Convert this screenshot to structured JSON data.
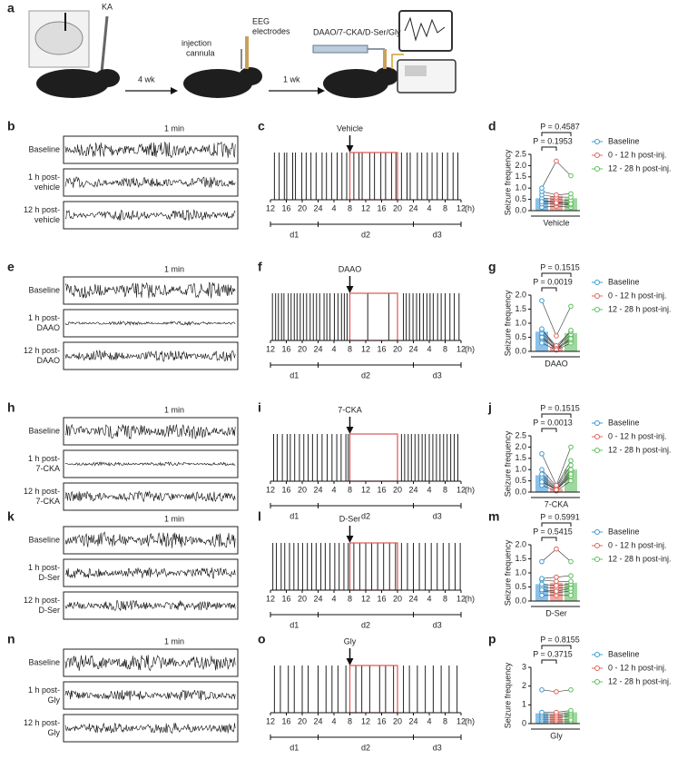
{
  "schematic": {
    "label": "a",
    "ka": "KA",
    "step1": "4 wk",
    "cannula": [
      "injection",
      "cannula"
    ],
    "electrodes": [
      "EEG",
      "electrodes"
    ],
    "step2": "1 wk",
    "drugs": "DAAO/7-CKA/D-Ser/Gly"
  },
  "eeg_panels": [
    {
      "label": "b",
      "scale": "1 min",
      "traces": [
        [
          "Baseline"
        ],
        [
          "1 h post-",
          "vehicle"
        ],
        [
          "12 h post-",
          "vehicle"
        ]
      ]
    },
    {
      "label": "e",
      "scale": "1 min",
      "traces": [
        [
          "Baseline"
        ],
        [
          "1 h post-",
          "DAAO"
        ],
        [
          "12 h post-",
          "DAAO"
        ]
      ]
    },
    {
      "label": "h",
      "scale": "1 min",
      "traces": [
        [
          "Baseline"
        ],
        [
          "1 h post-",
          "7-CKA"
        ],
        [
          "12 h post-",
          "7-CKA"
        ]
      ]
    },
    {
      "label": "k",
      "scale": "1 min",
      "traces": [
        [
          "Baseline"
        ],
        [
          "1 h post-",
          "D-Ser"
        ],
        [
          "12 h post-",
          "D-Ser"
        ]
      ]
    },
    {
      "label": "n",
      "scale": "1 min",
      "traces": [
        [
          "Baseline"
        ],
        [
          "1 h post-",
          "Gly"
        ],
        [
          "12 h post-",
          "Gly"
        ]
      ]
    }
  ],
  "chart_data": [
    {
      "type": "raster",
      "label": "c",
      "annotation": "Vehicle",
      "xunit": "(h)",
      "color": "#222",
      "highlight_color": "#e05555",
      "highlight": [
        20,
        32
      ],
      "arrow": 20,
      "x": [
        1,
        2.2,
        3.5,
        4.1,
        5.6,
        6.3,
        7.9,
        9,
        10.2,
        11.5,
        13,
        14.1,
        15.4,
        16.8,
        18,
        19.2,
        21,
        22.3,
        23.1,
        25,
        26.2,
        27.8,
        29,
        30.5,
        31.6,
        33,
        34.4,
        35.2,
        37,
        38.1,
        39.5,
        40.7,
        42,
        43.3,
        44.6,
        46,
        47.2
      ],
      "xlim": [
        0,
        48
      ],
      "xticks": [
        {
          "value": 0,
          "label": "12"
        },
        {
          "value": 4,
          "label": "16"
        },
        {
          "value": 8,
          "label": "20"
        },
        {
          "value": 12,
          "label": "24"
        },
        {
          "value": 16,
          "label": "4"
        },
        {
          "value": 20,
          "label": "8"
        },
        {
          "value": 24,
          "label": "12"
        },
        {
          "value": 28,
          "label": "16"
        },
        {
          "value": 32,
          "label": "20"
        },
        {
          "value": 36,
          "label": "24"
        },
        {
          "value": 40,
          "label": "4"
        },
        {
          "value": 44,
          "label": "8"
        },
        {
          "value": 48,
          "label": "12"
        }
      ],
      "days": [
        {
          "label": "d1",
          "range": [
            0,
            12
          ]
        },
        {
          "label": "d2",
          "range": [
            12,
            36
          ]
        },
        {
          "label": "d3",
          "range": [
            36,
            48
          ]
        }
      ]
    },
    {
      "type": "bar",
      "label": "d",
      "xlabel": "Vehicle",
      "ylabel": "Seizure frequency",
      "categories": [
        "Baseline",
        "0 - 12 h post-inj.",
        "12 - 28 h post-inj."
      ],
      "colors": [
        "#8cc2ea",
        "#f2aaa4",
        "#9fd89f"
      ],
      "point_colors": [
        "#3a9ad0",
        "#e0645c",
        "#5cbf5c"
      ],
      "values": [
        0.55,
        0.65,
        0.55
      ],
      "points": [
        [
          0.15,
          0.3,
          0.45,
          0.55,
          0.7,
          0.85,
          1.0,
          0.4
        ],
        [
          0.2,
          0.3,
          0.4,
          0.5,
          0.6,
          0.7,
          2.2,
          0.35
        ],
        [
          0.15,
          0.25,
          0.35,
          0.45,
          0.6,
          0.75,
          1.55,
          0.3
        ]
      ],
      "ylim": [
        0,
        2.5
      ],
      "yticks": [
        {
          "value": 0,
          "label": "0.0"
        },
        0.5,
        {
          "value": 1,
          "label": "1.0"
        },
        1.5,
        {
          "value": 2,
          "label": "2.0"
        },
        2.5
      ],
      "comparisons": [
        {
          "label": "P = 0.1953",
          "from": 0,
          "to": 1
        },
        {
          "label": "P = 0.4587",
          "from": 0,
          "to": 2
        }
      ]
    },
    {
      "type": "raster",
      "label": "f",
      "annotation": "DAAO",
      "xunit": "(h)",
      "color": "#222",
      "highlight_color": "#e05555",
      "highlight": [
        20,
        32
      ],
      "arrow": 20,
      "x": [
        0.5,
        1.3,
        2,
        2.8,
        3.4,
        4.5,
        5.2,
        6,
        6.7,
        7.5,
        8.3,
        9.1,
        10,
        10.8,
        11.6,
        12.4,
        13.5,
        14.2,
        15,
        16.1,
        17,
        17.9,
        18.6,
        19.3,
        24.5,
        29.8,
        33.5,
        34.2,
        35,
        35.9,
        36.8,
        37.6,
        38.5,
        39.4,
        40.2,
        41,
        42.1,
        43,
        44,
        45.2,
        46.3,
        47.5
      ],
      "xlim": [
        0,
        48
      ],
      "xticks": [
        {
          "value": 0,
          "label": "12"
        },
        {
          "value": 4,
          "label": "16"
        },
        {
          "value": 8,
          "label": "20"
        },
        {
          "value": 12,
          "label": "24"
        },
        {
          "value": 16,
          "label": "4"
        },
        {
          "value": 20,
          "label": "8"
        },
        {
          "value": 24,
          "label": "12"
        },
        {
          "value": 28,
          "label": "16"
        },
        {
          "value": 32,
          "label": "20"
        },
        {
          "value": 36,
          "label": "24"
        },
        {
          "value": 40,
          "label": "4"
        },
        {
          "value": 44,
          "label": "8"
        },
        {
          "value": 48,
          "label": "12"
        }
      ],
      "days": [
        {
          "label": "d1",
          "range": [
            0,
            12
          ]
        },
        {
          "label": "d2",
          "range": [
            12,
            36
          ]
        },
        {
          "label": "d3",
          "range": [
            36,
            48
          ]
        }
      ]
    },
    {
      "type": "bar",
      "label": "g",
      "xlabel": "DAAO",
      "ylabel": "Seizure frequency",
      "categories": [
        "Baseline",
        "0 - 12 h post-inj.",
        "12 - 28 h post-inj."
      ],
      "colors": [
        "#8cc2ea",
        "#f2aaa4",
        "#9fd89f"
      ],
      "point_colors": [
        "#3a9ad0",
        "#e0645c",
        "#5cbf5c"
      ],
      "values": [
        0.7,
        0.15,
        0.65
      ],
      "points": [
        [
          0.3,
          0.45,
          0.55,
          0.65,
          0.75,
          0.8,
          1.8,
          0.5
        ],
        [
          0.05,
          0.1,
          0.1,
          0.15,
          0.2,
          0.1,
          0.55,
          0.05
        ],
        [
          0.3,
          0.4,
          0.5,
          0.6,
          0.7,
          0.75,
          1.6,
          0.45
        ]
      ],
      "ylim": [
        0,
        2
      ],
      "yticks": [
        {
          "value": 0,
          "label": "0.0"
        },
        0.5,
        {
          "value": 1,
          "label": "1.0"
        },
        1.5,
        {
          "value": 2,
          "label": "2.0"
        }
      ],
      "comparisons": [
        {
          "label": "P = 0.0019",
          "from": 0,
          "to": 1
        },
        {
          "label": "P = 0.1515",
          "from": 0,
          "to": 2
        }
      ]
    },
    {
      "type": "raster",
      "label": "i",
      "annotation": "7-CKA",
      "xunit": "(h)",
      "color": "#222",
      "highlight_color": "#e05555",
      "highlight": [
        20,
        32
      ],
      "arrow": 20,
      "x": [
        0.8,
        1.7,
        3,
        4.2,
        5,
        6.1,
        7.3,
        8.4,
        9.5,
        10.6,
        11.8,
        13,
        14.3,
        15.5,
        16.7,
        17.8,
        19,
        19.6,
        33,
        33.8,
        34.7,
        35.5,
        36.4,
        37.3,
        38.2,
        39,
        40,
        40.9,
        41.8,
        42.7,
        43.6,
        44.5,
        45.4,
        46.3,
        47.2
      ],
      "xlim": [
        0,
        48
      ],
      "xticks": [
        {
          "value": 0,
          "label": "12"
        },
        {
          "value": 4,
          "label": "16"
        },
        {
          "value": 8,
          "label": "20"
        },
        {
          "value": 12,
          "label": "24"
        },
        {
          "value": 16,
          "label": "4"
        },
        {
          "value": 20,
          "label": "8"
        },
        {
          "value": 24,
          "label": "12"
        },
        {
          "value": 28,
          "label": "16"
        },
        {
          "value": 32,
          "label": "20"
        },
        {
          "value": 36,
          "label": "24"
        },
        {
          "value": 40,
          "label": "4"
        },
        {
          "value": 44,
          "label": "8"
        },
        {
          "value": 48,
          "label": "12"
        }
      ],
      "days": [
        {
          "label": "d1",
          "range": [
            0,
            12
          ]
        },
        {
          "label": "d2",
          "range": [
            12,
            36
          ]
        },
        {
          "label": "d3",
          "range": [
            36,
            48
          ]
        }
      ]
    },
    {
      "type": "bar",
      "label": "j",
      "xlabel": "7-CKA",
      "ylabel": "Seizure frequency",
      "categories": [
        "Baseline",
        "0 - 12 h post-inj.",
        "12 - 28 h post-inj."
      ],
      "colors": [
        "#8cc2ea",
        "#f2aaa4",
        "#9fd89f"
      ],
      "point_colors": [
        "#3a9ad0",
        "#e0645c",
        "#5cbf5c"
      ],
      "values": [
        0.75,
        0.15,
        1.0
      ],
      "points": [
        [
          0.3,
          0.5,
          0.6,
          0.7,
          0.8,
          1.0,
          1.7,
          0.45
        ],
        [
          0.05,
          0.1,
          0.1,
          0.15,
          0.2,
          0.25,
          0.3,
          0.1
        ],
        [
          0.5,
          0.7,
          0.9,
          1.0,
          1.2,
          1.4,
          2.0,
          0.8
        ]
      ],
      "ylim": [
        0,
        2.5
      ],
      "yticks": [
        {
          "value": 0,
          "label": "0.0"
        },
        0.5,
        {
          "value": 1,
          "label": "1.0"
        },
        1.5,
        {
          "value": 2,
          "label": "2.0"
        },
        2.5
      ],
      "comparisons": [
        {
          "label": "P = 0.0013",
          "from": 0,
          "to": 1
        },
        {
          "label": "P = 0.1515",
          "from": 0,
          "to": 2
        }
      ]
    },
    {
      "type": "raster",
      "label": "l",
      "annotation": "D-Ser",
      "xunit": "(h)",
      "color": "#222",
      "highlight_color": "#e05555",
      "highlight": [
        20,
        32
      ],
      "arrow": 20,
      "x": [
        0.6,
        1.5,
        2.7,
        3.6,
        4.8,
        5.9,
        7,
        8.1,
        9.3,
        10.4,
        11.5,
        12.7,
        13.8,
        15,
        16.2,
        17.3,
        18.5,
        19.6,
        21,
        22.5,
        24,
        25.5,
        27,
        28.5,
        30,
        31.5,
        33,
        34.5,
        36,
        37.5,
        39,
        40.5,
        42,
        43.5,
        45,
        46.5,
        47.8
      ],
      "xlim": [
        0,
        48
      ],
      "xticks": [
        {
          "value": 0,
          "label": "12"
        },
        {
          "value": 4,
          "label": "16"
        },
        {
          "value": 8,
          "label": "20"
        },
        {
          "value": 12,
          "label": "24"
        },
        {
          "value": 16,
          "label": "4"
        },
        {
          "value": 20,
          "label": "8"
        },
        {
          "value": 24,
          "label": "12"
        },
        {
          "value": 28,
          "label": "16"
        },
        {
          "value": 32,
          "label": "20"
        },
        {
          "value": 36,
          "label": "24"
        },
        {
          "value": 40,
          "label": "4"
        },
        {
          "value": 44,
          "label": "8"
        },
        {
          "value": 48,
          "label": "12"
        }
      ],
      "days": [
        {
          "label": "d1",
          "range": [
            0,
            12
          ]
        },
        {
          "label": "d2",
          "range": [
            12,
            36
          ]
        },
        {
          "label": "d3",
          "range": [
            36,
            48
          ]
        }
      ]
    },
    {
      "type": "bar",
      "label": "m",
      "xlabel": "D-Ser",
      "ylabel": "Seizure frequency",
      "categories": [
        "Baseline",
        "0 - 12 h post-inj.",
        "12 - 28 h post-inj."
      ],
      "colors": [
        "#8cc2ea",
        "#f2aaa4",
        "#9fd89f"
      ],
      "point_colors": [
        "#3a9ad0",
        "#e0645c",
        "#5cbf5c"
      ],
      "values": [
        0.6,
        0.65,
        0.65
      ],
      "points": [
        [
          0.2,
          0.35,
          0.5,
          0.6,
          0.75,
          0.8,
          1.4,
          0.4
        ],
        [
          0.2,
          0.3,
          0.45,
          0.55,
          0.7,
          0.85,
          1.85,
          0.35
        ],
        [
          0.2,
          0.35,
          0.5,
          0.6,
          0.7,
          0.9,
          1.4,
          0.45
        ]
      ],
      "ylim": [
        0,
        2
      ],
      "yticks": [
        {
          "value": 0,
          "label": "0.0"
        },
        0.5,
        {
          "value": 1,
          "label": "1.0"
        },
        1.5,
        {
          "value": 2,
          "label": "2.0"
        }
      ],
      "comparisons": [
        {
          "label": "P = 0.5415",
          "from": 0,
          "to": 1
        },
        {
          "label": "P = 0.5991",
          "from": 0,
          "to": 2
        }
      ]
    },
    {
      "type": "raster",
      "label": "o",
      "annotation": "Gly",
      "xunit": "(h)",
      "color": "#222",
      "highlight_color": "#e05555",
      "highlight": [
        20,
        32
      ],
      "arrow": 20,
      "x": [
        1,
        2.5,
        4.5,
        6,
        8,
        9.5,
        12,
        14,
        15.5,
        17,
        19,
        21.5,
        23,
        25,
        27.5,
        29,
        31,
        33.5,
        35,
        37,
        39,
        41,
        43,
        45,
        47
      ],
      "xlim": [
        0,
        48
      ],
      "xticks": [
        {
          "value": 0,
          "label": "12"
        },
        {
          "value": 4,
          "label": "16"
        },
        {
          "value": 8,
          "label": "20"
        },
        {
          "value": 12,
          "label": "24"
        },
        {
          "value": 16,
          "label": "4"
        },
        {
          "value": 20,
          "label": "8"
        },
        {
          "value": 24,
          "label": "12"
        },
        {
          "value": 28,
          "label": "16"
        },
        {
          "value": 32,
          "label": "20"
        },
        {
          "value": 36,
          "label": "24"
        },
        {
          "value": 40,
          "label": "4"
        },
        {
          "value": 44,
          "label": "8"
        },
        {
          "value": 48,
          "label": "12"
        }
      ],
      "days": [
        {
          "label": "d1",
          "range": [
            0,
            12
          ]
        },
        {
          "label": "d2",
          "range": [
            12,
            36
          ]
        },
        {
          "label": "d3",
          "range": [
            36,
            48
          ]
        }
      ]
    },
    {
      "type": "bar",
      "label": "p",
      "xlabel": "Gly",
      "ylabel": "Seizure frequency",
      "categories": [
        "Baseline",
        "0 - 12 h post-inj.",
        "12 - 28 h post-inj."
      ],
      "colors": [
        "#8cc2ea",
        "#f2aaa4",
        "#9fd89f"
      ],
      "point_colors": [
        "#3a9ad0",
        "#e0645c",
        "#5cbf5c"
      ],
      "values": [
        0.55,
        0.5,
        0.6
      ],
      "points": [
        [
          0.1,
          0.2,
          0.3,
          0.4,
          0.5,
          0.6,
          1.8
        ],
        [
          0.1,
          0.2,
          0.3,
          0.4,
          0.5,
          0.6,
          1.7
        ],
        [
          0.1,
          0.2,
          0.4,
          0.5,
          0.6,
          0.7,
          1.8
        ]
      ],
      "ylim": [
        0,
        3
      ],
      "yticks": [
        0,
        1,
        2,
        3
      ],
      "comparisons": [
        {
          "label": "P = 0.3715",
          "from": 0,
          "to": 1
        },
        {
          "label": "P = 0.8155",
          "from": 0,
          "to": 2
        }
      ]
    }
  ]
}
